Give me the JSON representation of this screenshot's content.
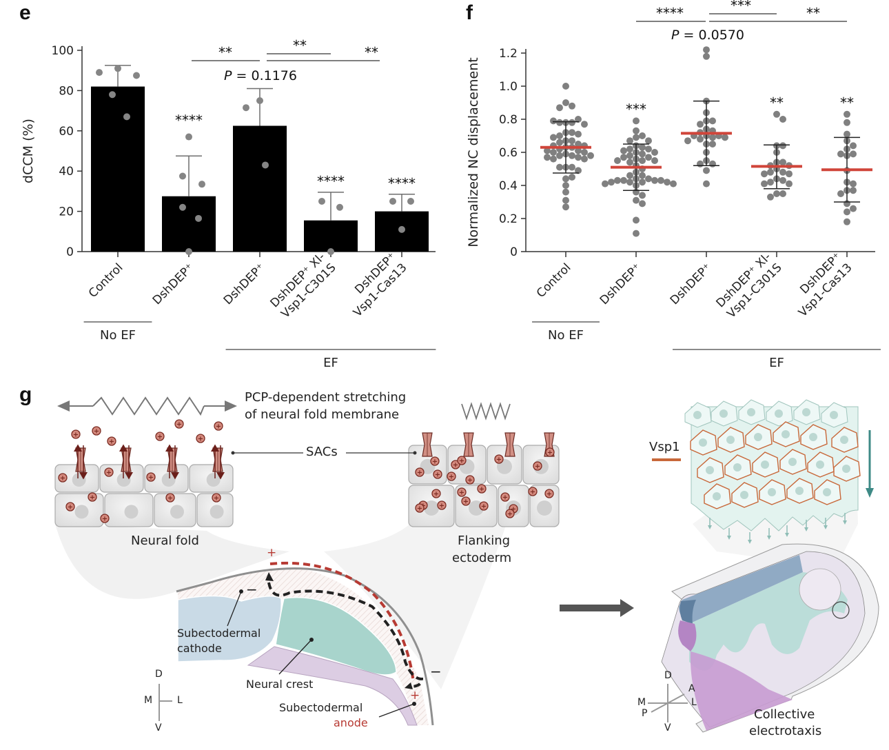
{
  "panels": {
    "e": "e",
    "f": "f",
    "g": "g"
  },
  "chart_data": [
    {
      "id": "e",
      "type": "bar",
      "title": "",
      "xlabel": "",
      "ylabel": "dCCM (%)",
      "ylim": [
        0,
        100
      ],
      "yticks": [
        0,
        20,
        40,
        60,
        80,
        100
      ],
      "categories": [
        "Control",
        "DshDEP⁺",
        "DshDEP⁺",
        "DshDEP⁺ Xl-\nVsp1-C301S",
        "DshDEP⁺\nVsp1-Cas13"
      ],
      "category_lines": [
        [
          "Control"
        ],
        [
          "DshDEP⁺"
        ],
        [
          "DshDEP⁺"
        ],
        [
          "DshDEP⁺ Xl-",
          "Vsp1-C301S"
        ],
        [
          "DshDEP⁺",
          "Vsp1-Cas13"
        ]
      ],
      "values": [
        82,
        27.5,
        62.5,
        15.5,
        20
      ],
      "error_upper": [
        92.5,
        47.5,
        81,
        29.5,
        28.5
      ],
      "points": [
        [
          89,
          91,
          87.5,
          78,
          67
        ],
        [
          57,
          37.5,
          33.5,
          22,
          16.5,
          0
        ],
        [
          71.5,
          75,
          43
        ],
        [
          25,
          22,
          0
        ],
        [
          25,
          25,
          11
        ]
      ],
      "significance_labels": [
        "",
        "****",
        "",
        "****",
        "****"
      ],
      "comparisons": [
        {
          "from": 1,
          "to": 2,
          "label": "**"
        },
        {
          "from": 2,
          "to": 3,
          "label": "**"
        },
        {
          "from": 2,
          "to": 4,
          "label": "**"
        }
      ],
      "p_value_annotation": {
        "italic": "P",
        "text": " = 0.1176"
      },
      "groups": [
        {
          "label": "No EF",
          "from": 0,
          "to": 0
        },
        {
          "label": "EF",
          "from": 2,
          "to": 4
        }
      ],
      "colors": {
        "bar": "#000000",
        "point": "#858585",
        "error": "#6e6e6e"
      }
    },
    {
      "id": "f",
      "type": "scatter",
      "title": "",
      "xlabel": "",
      "ylabel": "Normalized NC displacement",
      "ylim": [
        0,
        1.22
      ],
      "yticks": [
        0,
        0.2,
        0.4,
        0.6,
        0.8,
        1.0,
        1.2
      ],
      "ytick_labels": [
        "0",
        "0.2",
        "0.4",
        "0.6",
        "0.8",
        "1.0",
        "1.2"
      ],
      "categories": [
        "Control",
        "DshDEP⁺",
        "DshDEP⁺",
        "DshDEP⁺ Xl-\nVsp1-C301S",
        "DshDEP⁺\nVsp1-Cas13"
      ],
      "category_lines": [
        [
          "Control"
        ],
        [
          "DshDEP⁺"
        ],
        [
          "DshDEP⁺"
        ],
        [
          "DshDEP⁺ Xl-",
          "Vsp1-C301S"
        ],
        [
          "DshDEP⁺",
          "Vsp1-Cas13"
        ]
      ],
      "means": [
        0.63,
        0.51,
        0.715,
        0.515,
        0.495
      ],
      "sd_lower": [
        0.475,
        0.37,
        0.52,
        0.38,
        0.3
      ],
      "sd_upper": [
        0.785,
        0.65,
        0.91,
        0.645,
        0.69
      ],
      "points": [
        [
          1.0,
          0.9,
          0.88,
          0.87,
          0.78,
          0.78,
          0.78,
          0.8,
          0.79,
          0.77,
          0.72,
          0.72,
          0.7,
          0.71,
          0.69,
          0.67,
          0.67,
          0.66,
          0.65,
          0.64,
          0.64,
          0.63,
          0.63,
          0.62,
          0.61,
          0.61,
          0.6,
          0.6,
          0.59,
          0.58,
          0.58,
          0.58,
          0.57,
          0.57,
          0.56,
          0.56,
          0.51,
          0.51,
          0.51,
          0.49,
          0.44,
          0.45,
          0.4,
          0.36,
          0.31,
          0.27
        ],
        [
          0.79,
          0.73,
          0.7,
          0.69,
          0.67,
          0.67,
          0.64,
          0.63,
          0.62,
          0.62,
          0.61,
          0.6,
          0.6,
          0.59,
          0.58,
          0.57,
          0.57,
          0.56,
          0.55,
          0.55,
          0.55,
          0.54,
          0.52,
          0.5,
          0.48,
          0.46,
          0.46,
          0.44,
          0.44,
          0.43,
          0.43,
          0.43,
          0.43,
          0.42,
          0.42,
          0.42,
          0.42,
          0.41,
          0.41,
          0.4,
          0.36,
          0.34,
          0.31,
          0.29,
          0.19,
          0.11
        ],
        [
          1.22,
          1.18,
          0.91,
          0.84,
          0.79,
          0.79,
          0.77,
          0.74,
          0.73,
          0.72,
          0.7,
          0.7,
          0.7,
          0.69,
          0.69,
          0.68,
          0.67,
          0.65,
          0.65,
          0.6,
          0.55,
          0.53,
          0.53,
          0.49,
          0.41
        ],
        [
          0.83,
          0.8,
          0.64,
          0.64,
          0.6,
          0.54,
          0.54,
          0.52,
          0.52,
          0.5,
          0.48,
          0.48,
          0.47,
          0.47,
          0.44,
          0.43,
          0.42,
          0.41,
          0.41,
          0.35,
          0.35,
          0.33
        ],
        [
          0.83,
          0.78,
          0.71,
          0.67,
          0.64,
          0.62,
          0.59,
          0.59,
          0.58,
          0.49,
          0.42,
          0.41,
          0.37,
          0.37,
          0.35,
          0.29,
          0.26,
          0.24,
          0.18
        ]
      ],
      "significance_labels": [
        "",
        "***",
        "",
        "**",
        "**"
      ],
      "comparisons": [
        {
          "from": 1,
          "to": 2,
          "label": "****"
        },
        {
          "from": 2,
          "to": 3,
          "label": "***"
        },
        {
          "from": 2,
          "to": 4,
          "label": "**"
        }
      ],
      "p_value_annotation": {
        "italic": "P",
        "text": " = 0.0570"
      },
      "groups": [
        {
          "label": "No EF",
          "from": 0,
          "to": 0
        },
        {
          "label": "EF",
          "from": 2,
          "to": 4
        }
      ],
      "colors": {
        "mean": "#d0453a",
        "point": "#808080",
        "error": "#222222"
      }
    }
  ],
  "diagram_g": {
    "stretch_caption_line1": "PCP-dependent stretching",
    "stretch_caption_line2": "of neural fold membrane",
    "sacs_label": "SACs",
    "neural_fold_label": "Neural fold",
    "flanking_label_line1": "Flanking",
    "flanking_label_line2": "ectoderm",
    "cathode_line1": "Subectodermal",
    "cathode_line2": "cathode",
    "neural_crest_label": "Neural crest",
    "anode_line1": "Subectodermal",
    "anode_line2": "anode",
    "plus_sign": "+",
    "minus_sign": "−",
    "ion_glyph": "+",
    "vsp1_label": "Vsp1",
    "collective_line1": "Collective",
    "collective_line2": "electrotaxis",
    "axes_left": {
      "d": "D",
      "v": "V",
      "m": "M",
      "l": "L"
    },
    "axes_right": {
      "d": "D",
      "v": "V",
      "m": "M",
      "l": "L",
      "a": "A",
      "p": "P"
    },
    "colors": {
      "ion_fill": "#d48a7e",
      "ion_stroke": "#7a2b22",
      "channel": "#d18f84",
      "vsp1": "#c8683a",
      "anode_red": "#b73a33",
      "teal_arrow": "#3e8a86",
      "cathode_blue": "#c9dae6",
      "crest_teal": "#a8d4cc",
      "purple": "#d9c8de"
    }
  }
}
